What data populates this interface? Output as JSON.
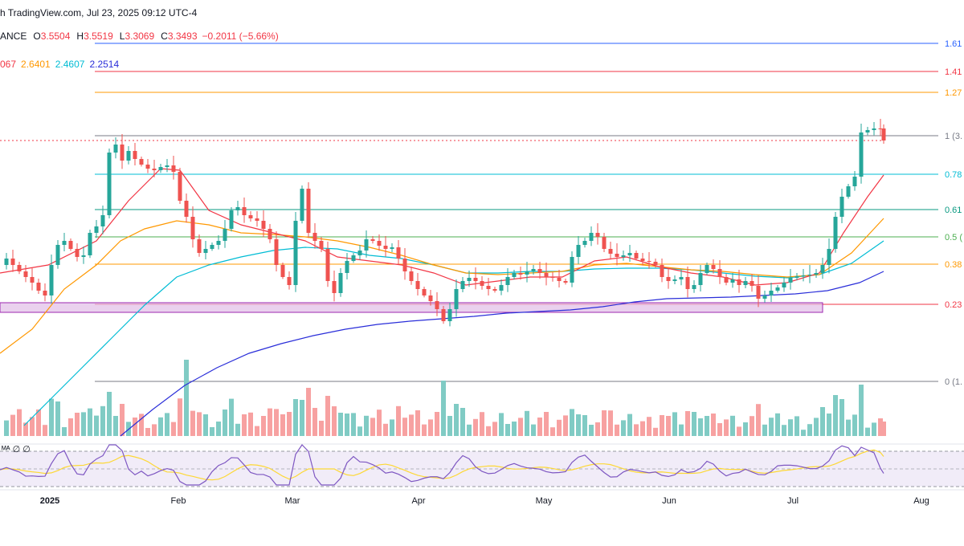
{
  "header": {
    "source": "h TradingView.com, Jul 23, 2025 09:12 UTC-4",
    "symbol_fragment": "ANCE",
    "open_label": "O",
    "open": "3.5504",
    "high_label": "H",
    "high": "3.5519",
    "low_label": "L",
    "low": "3.3069",
    "close_label": "C",
    "close": "3.3493",
    "change": "−0.2011 (−5.66%)",
    "ma_values": [
      "067",
      "2.6401",
      "2.4607",
      "2.2514"
    ]
  },
  "rsi_tag": "ᴹᴬ  ∅  ∅",
  "colors": {
    "up": "#26a69a",
    "down": "#ef5350",
    "ma_fast": "#f23645",
    "ma_mid": "#ff9800",
    "ma_slow": "#00bcd4",
    "ma_long": "#2a2ed9",
    "volume_up": "#80cbc4",
    "volume_down": "#f7a1a1",
    "rsi_band": "#ede7f6",
    "rsi_line": "#7e57c2",
    "rsi_ma": "#fdd835",
    "support_zone": "#e1bee7"
  },
  "chart_data": {
    "type": "candlestick",
    "x_axis_labels": [
      "2025",
      "Feb",
      "Mar",
      "Apr",
      "May",
      "Jun",
      "Jul",
      "Aug"
    ],
    "fib_levels": [
      {
        "label": "1.61",
        "color": "#2962ff"
      },
      {
        "label": "1.41",
        "color": "#f23645"
      },
      {
        "label": "1.27",
        "color": "#ff9800"
      },
      {
        "label": "1 (3.",
        "color": "#787b86"
      },
      {
        "label": "0.78",
        "color": "#00bcd4"
      },
      {
        "label": "0.61",
        "color": "#089981"
      },
      {
        "label": "0.5 (",
        "color": "#4caf50"
      },
      {
        "label": "0.38",
        "color": "#ff9800"
      },
      {
        "label": "0.23",
        "color": "#f23645"
      },
      {
        "label": "0 (1.",
        "color": "#787b86"
      }
    ],
    "last_close": 3.3493
  }
}
